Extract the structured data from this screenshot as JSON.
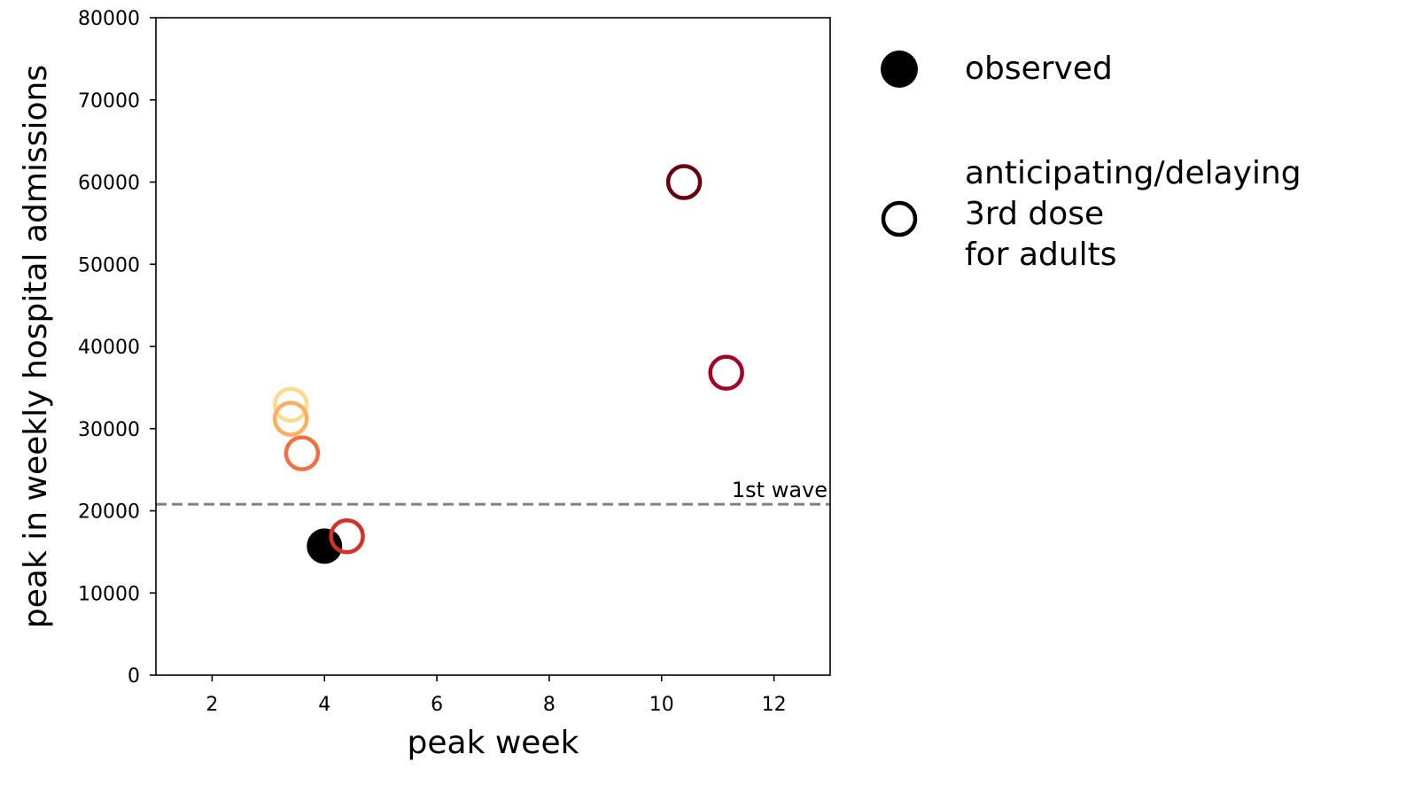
{
  "chart_data": {
    "type": "scatter",
    "xlabel": "peak week",
    "ylabel": "peak in weekly hospital admissions",
    "xlim": [
      1,
      13
    ],
    "ylim": [
      0,
      80000
    ],
    "xticks": [
      2,
      4,
      6,
      8,
      10,
      12
    ],
    "yticks": [
      0,
      10000,
      20000,
      30000,
      40000,
      50000,
      60000,
      70000,
      80000
    ],
    "grid": false,
    "reference_line": {
      "y": 20800,
      "label": "1st wave",
      "style": "dashed",
      "color": "#808080"
    },
    "series": [
      {
        "name": "observed",
        "marker": "filled-circle",
        "color": "#000000",
        "points": [
          {
            "x": 4.0,
            "y": 15700
          }
        ]
      },
      {
        "name": "anticipating/delaying 3rd dose for adults",
        "marker": "open-circle",
        "points": [
          {
            "x": 3.4,
            "y": 32900,
            "color": "#fed98e"
          },
          {
            "x": 3.4,
            "y": 31200,
            "color": "#fdae61"
          },
          {
            "x": 3.6,
            "y": 27000,
            "color": "#f46d43"
          },
          {
            "x": 4.4,
            "y": 16900,
            "color": "#d73027"
          },
          {
            "x": 10.4,
            "y": 60000,
            "color": "#67000d"
          },
          {
            "x": 11.15,
            "y": 36800,
            "color": "#a50026"
          }
        ]
      }
    ],
    "legend": {
      "placement": "right",
      "entries": [
        {
          "lines": [
            "observed"
          ]
        },
        {
          "lines": [
            "anticipating/delaying",
            "3rd dose",
            "for adults"
          ]
        }
      ]
    }
  }
}
